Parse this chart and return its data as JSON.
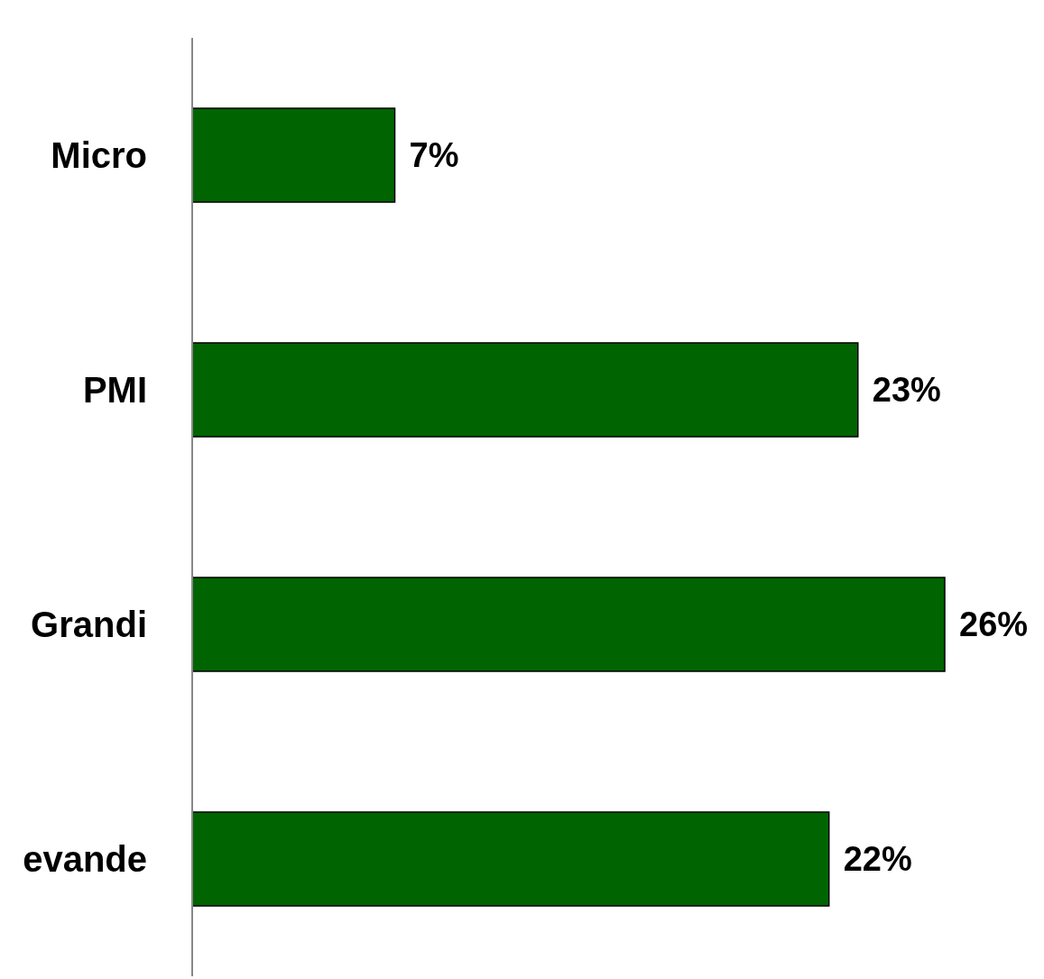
{
  "chart_data": {
    "type": "bar",
    "orientation": "horizontal",
    "categories": [
      "Micro",
      "PMI",
      "Grandi",
      "evande"
    ],
    "values": [
      7,
      23,
      26,
      22
    ],
    "color": "#006400",
    "value_labels": [
      "7%",
      "23%",
      "26%",
      "22%"
    ]
  }
}
